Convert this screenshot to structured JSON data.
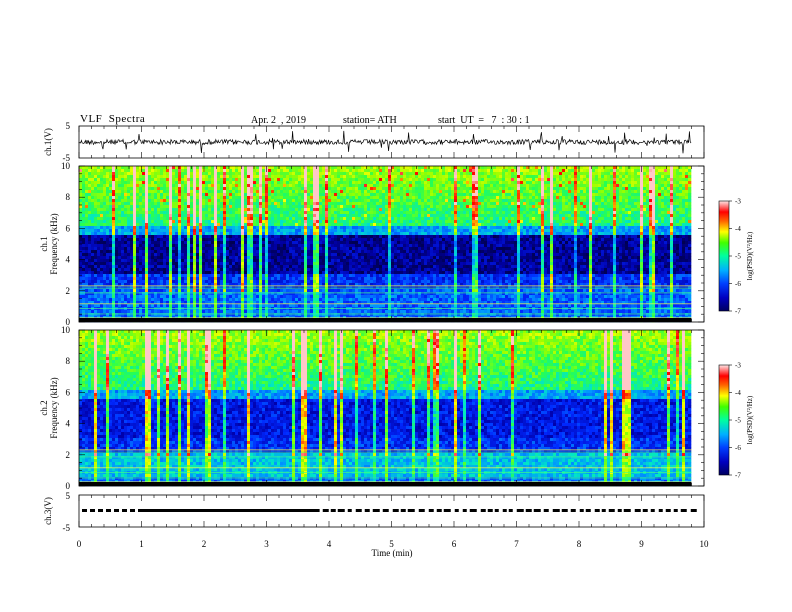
{
  "header": {
    "title": "VLF  Spectra",
    "date": "Apr. 2  , 2019",
    "station": "station= ATH",
    "start": "start  UT  =   7  : 30 : 1"
  },
  "chart_data": [
    {
      "type": "line",
      "name": "ch1-waveform",
      "ylabel": "ch.1(V)",
      "ylim": [
        -5,
        5
      ],
      "yticks": [
        5,
        -5
      ],
      "xlim": [
        0,
        10
      ],
      "description_values": {
        "baseline": 0,
        "x_end": 9.8
      }
    },
    {
      "type": "heatmap",
      "name": "ch1-spectrogram",
      "ylabel_top": "ch.1",
      "ylabel": "Frequency  (kHz)",
      "xlim": [
        0,
        10
      ],
      "ylim": [
        0,
        10
      ],
      "yticks": [
        "0",
        "2",
        "4",
        "6",
        "8",
        "10"
      ],
      "data_end_x": 9.8,
      "colorbar": {
        "label": "log(PSD)(V²/Hz)",
        "range": [
          -7,
          -3
        ],
        "ticks": [
          "-3",
          "-4",
          "-5",
          "-6",
          "-7"
        ]
      }
    },
    {
      "type": "heatmap",
      "name": "ch2-spectrogram",
      "ylabel_top": "ch.2",
      "ylabel": "Frequency  (kHz)",
      "xlim": [
        0,
        10
      ],
      "ylim": [
        0,
        10
      ],
      "yticks": [
        "0",
        "2",
        "4",
        "6",
        "8",
        "10"
      ],
      "data_end_x": 9.8,
      "colorbar": {
        "label": "log(PSD)(V²/Hz)",
        "range": [
          -7,
          -3
        ],
        "ticks": [
          "-3",
          "-4",
          "-5",
          "-6",
          "-7"
        ]
      }
    },
    {
      "type": "line",
      "name": "ch3-signal",
      "ylabel": "ch.3(V)",
      "ylim": [
        -5,
        5
      ],
      "yticks": [
        5,
        -5
      ],
      "xlim": [
        0,
        10
      ],
      "level": 0
    }
  ],
  "xaxis": {
    "label": "Time  (min)",
    "ticks": [
      "0",
      "1",
      "2",
      "3",
      "4",
      "5",
      "6",
      "7",
      "8",
      "9",
      "10"
    ]
  },
  "colors": {
    "frame": "#000000",
    "colormap": [
      "#00006e",
      "#0000ff",
      "#00c8ff",
      "#00ff66",
      "#ffff00",
      "#ff3300",
      "#ffdddd"
    ]
  }
}
